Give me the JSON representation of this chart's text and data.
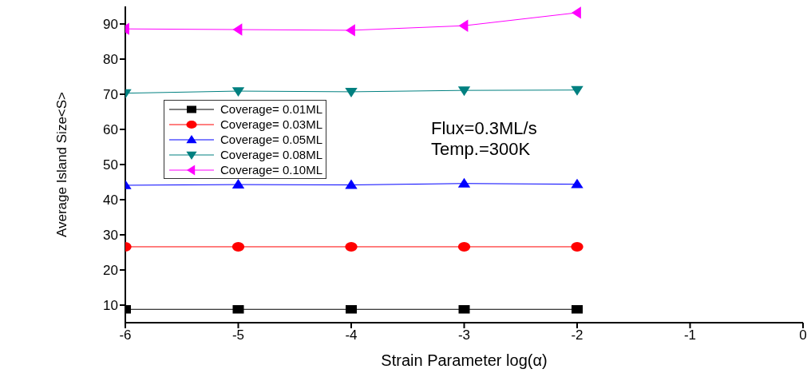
{
  "chart_data": {
    "type": "line",
    "xlabel": "Strain Parameter log(α)",
    "ylabel": "Average Island Size<S>",
    "x": [
      -6,
      -5,
      -4,
      -3,
      -2
    ],
    "series": [
      {
        "name": "Coverage= 0.01ML",
        "color": "#000000",
        "marker": "square",
        "values": [
          8.8,
          8.8,
          8.8,
          8.8,
          8.8
        ]
      },
      {
        "name": "Coverage= 0.03ML",
        "color": "#ff0000",
        "marker": "circle",
        "values": [
          26.6,
          26.6,
          26.6,
          26.6,
          26.6
        ]
      },
      {
        "name": "Coverage= 0.05ML",
        "color": "#0000ff",
        "marker": "triangle",
        "values": [
          44.1,
          44.3,
          44.2,
          44.6,
          44.4
        ]
      },
      {
        "name": "Coverage= 0.08ML",
        "color": "#008080",
        "marker": "triangle-down",
        "values": [
          70.3,
          70.9,
          70.7,
          71.1,
          71.2
        ]
      },
      {
        "name": "Coverage= 0.10ML",
        "color": "#ff00ff",
        "marker": "triangle-left",
        "values": [
          88.6,
          88.4,
          88.2,
          89.5,
          93.2
        ]
      }
    ],
    "xlim": [
      -6,
      0
    ],
    "xticks": [
      -6,
      -5,
      -4,
      -3,
      -2,
      -1,
      0
    ],
    "ylim": [
      5,
      95
    ],
    "yticks": [
      10,
      20,
      30,
      40,
      50,
      60,
      70,
      80,
      90
    ],
    "grid": false,
    "legend": "top left",
    "line_style": "solid",
    "annotations": [
      "Flux=0.3ML/s",
      "Temp.=300K"
    ]
  }
}
